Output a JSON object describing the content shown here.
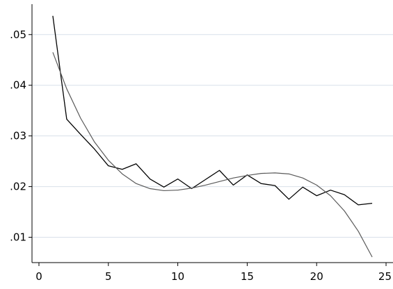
{
  "chart_data": {
    "type": "line",
    "title": "",
    "xlabel": "",
    "ylabel": "",
    "xlim": [
      -0.5,
      25.5
    ],
    "ylim": [
      0.005,
      0.056
    ],
    "x_ticks": [
      0,
      5,
      10,
      15,
      20,
      25
    ],
    "x_tick_labels": [
      "0",
      "5",
      "10",
      "15",
      "20",
      "25"
    ],
    "y_ticks": [
      0.01,
      0.02,
      0.03,
      0.04,
      0.05
    ],
    "y_tick_labels": [
      ".01",
      ".02",
      ".03",
      ".04",
      ".05"
    ],
    "grid": "horizontal",
    "legend": "none",
    "colors": {
      "observed": "#000000",
      "fitted": "#5a5a5a",
      "grid": "#d8e0ea",
      "axis": "#000000"
    },
    "series": [
      {
        "x": [
          1,
          2,
          3,
          4,
          5,
          6,
          7,
          8,
          9,
          10,
          11,
          12,
          13,
          14,
          15,
          16,
          17,
          18,
          19,
          20,
          21,
          22,
          23,
          24
        ],
        "values": [
          0.0537,
          0.0333,
          0.0303,
          0.0274,
          0.0241,
          0.0234,
          0.0245,
          0.0215,
          0.0199,
          0.0215,
          0.0196,
          0.0214,
          0.0232,
          0.0203,
          0.0223,
          0.0206,
          0.0202,
          0.0175,
          0.0199,
          0.0182,
          0.0193,
          0.0184,
          0.0164,
          0.0167
        ]
      },
      {
        "x": [
          1,
          2,
          3,
          4,
          5,
          6,
          7,
          8,
          9,
          10,
          11,
          12,
          13,
          14,
          15,
          16,
          17,
          18,
          19,
          20,
          21,
          22,
          23,
          24
        ],
        "values": [
          0.0465,
          0.0393,
          0.0335,
          0.0288,
          0.0252,
          0.0225,
          0.0206,
          0.0196,
          0.0192,
          0.0193,
          0.0197,
          0.0203,
          0.021,
          0.0217,
          0.0222,
          0.0226,
          0.0227,
          0.0225,
          0.0217,
          0.0203,
          0.0182,
          0.0152,
          0.0112,
          0.0061
        ]
      }
    ]
  }
}
